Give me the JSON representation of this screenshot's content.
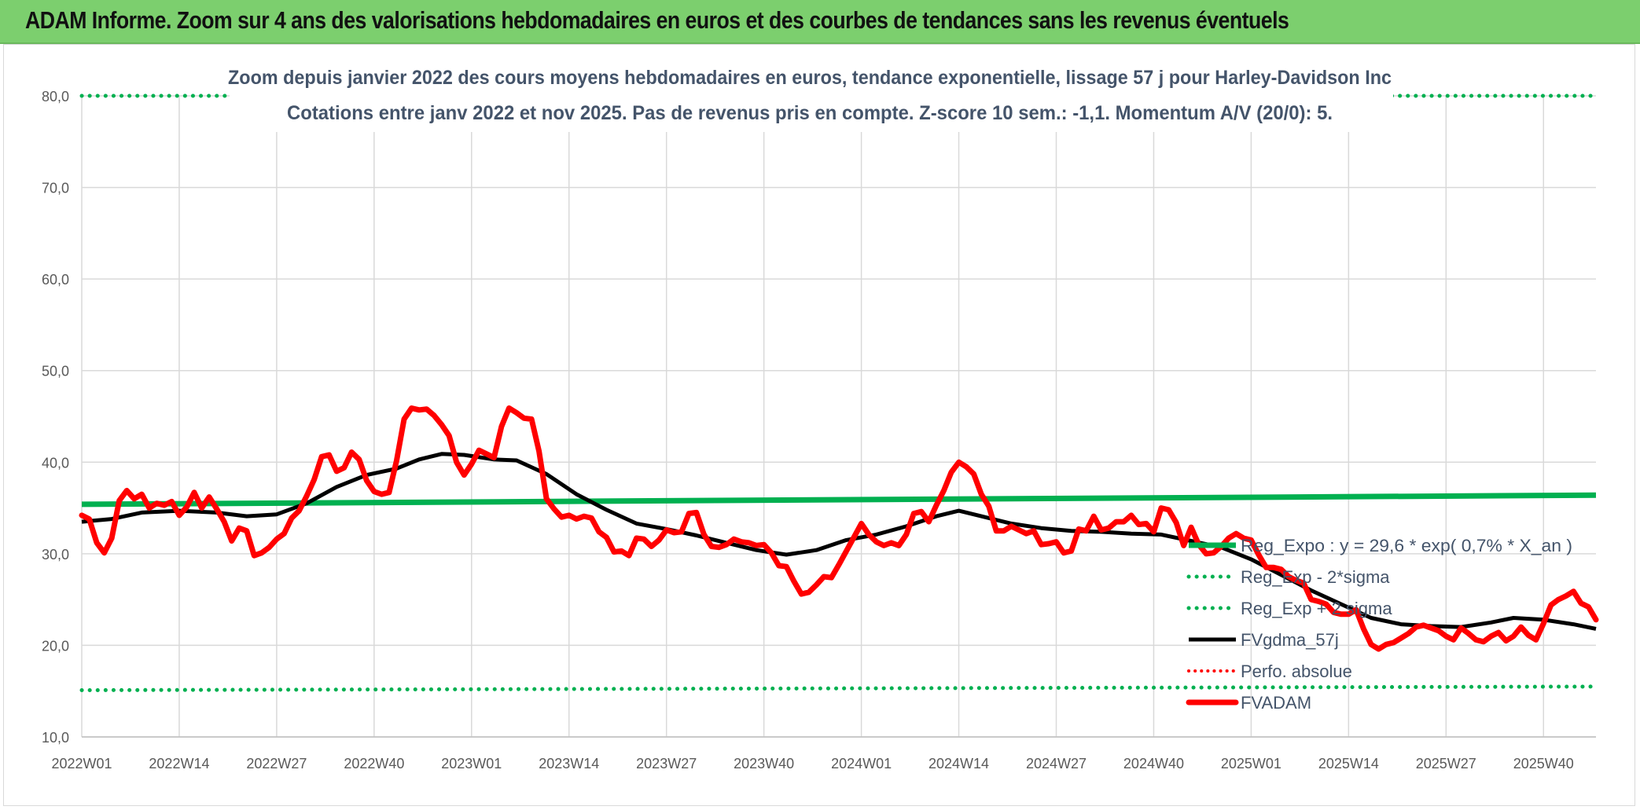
{
  "header": {
    "title": "ADAM Informe. Zoom sur 4 ans des valorisations hebdomadaires en euros et des courbes de tendances sans les revenus éventuels"
  },
  "colors": {
    "green": "#00b050",
    "red": "#ff0000",
    "black": "#000000",
    "grid": "#d9d9d9",
    "axis_text": "#595959",
    "header_bg": "#7ccf6e"
  },
  "chart_data": {
    "type": "line",
    "title": "Zoom depuis janvier 2022 des cours moyens hebdomadaires en euros, tendance exponentielle, lissage 57 j pour Harley-Davidson Inc",
    "subtitle": "Cotations entre janv 2022 et nov 2025. Pas de revenus pris en compte. Z-score 10 sem.: -1,1. Momentum A/V (20/0): 5.",
    "ylim": [
      10,
      80
    ],
    "yticks": [
      "10,0",
      "20,0",
      "30,0",
      "40,0",
      "50,0",
      "60,0",
      "70,0",
      "80,0"
    ],
    "xlim": [
      0,
      202
    ],
    "xticks": [
      {
        "label": "2022W01",
        "i": 0
      },
      {
        "label": "2022W14",
        "i": 13
      },
      {
        "label": "2022W27",
        "i": 26
      },
      {
        "label": "2022W40",
        "i": 39
      },
      {
        "label": "2023W01",
        "i": 52
      },
      {
        "label": "2023W14",
        "i": 65
      },
      {
        "label": "2023W27",
        "i": 78
      },
      {
        "label": "2023W40",
        "i": 91
      },
      {
        "label": "2024W01",
        "i": 104
      },
      {
        "label": "2024W14",
        "i": 117
      },
      {
        "label": "2024W27",
        "i": 130
      },
      {
        "label": "2024W40",
        "i": 143
      },
      {
        "label": "2025W01",
        "i": 156
      },
      {
        "label": "2025W14",
        "i": 169
      },
      {
        "label": "2025W27",
        "i": 182
      },
      {
        "label": "2025W40",
        "i": 195
      }
    ],
    "series": [
      {
        "name": "Reg_Expo : y = 29,6 * exp( 0,7% *  X_an )",
        "style": "green-solid",
        "points": [
          [
            0,
            35.4
          ],
          [
            202,
            36.4
          ]
        ]
      },
      {
        "name": "Reg_Exp - 2*sigma",
        "style": "green-dotted",
        "points": [
          [
            0,
            15.1
          ],
          [
            202,
            15.5
          ]
        ]
      },
      {
        "name": "Reg_Exp + 2 sigma",
        "style": "green-dotted",
        "points": [
          [
            0,
            80.0
          ],
          [
            202,
            80.0
          ]
        ]
      },
      {
        "name": "FVgdma_57j",
        "style": "black-solid",
        "points": [
          [
            0,
            33.5
          ],
          [
            4,
            33.8
          ],
          [
            8,
            34.5
          ],
          [
            13,
            34.7
          ],
          [
            18,
            34.5
          ],
          [
            22,
            34.1
          ],
          [
            26,
            34.3
          ],
          [
            30,
            35.5
          ],
          [
            34,
            37.3
          ],
          [
            38,
            38.6
          ],
          [
            42,
            39.3
          ],
          [
            45,
            40.3
          ],
          [
            48,
            40.9
          ],
          [
            51,
            40.8
          ],
          [
            55,
            40.3
          ],
          [
            58,
            40.2
          ],
          [
            62,
            38.7
          ],
          [
            66,
            36.5
          ],
          [
            70,
            34.8
          ],
          [
            74,
            33.3
          ],
          [
            78,
            32.7
          ],
          [
            82,
            32.0
          ],
          [
            86,
            31.2
          ],
          [
            90,
            30.4
          ],
          [
            94,
            29.9
          ],
          [
            98,
            30.4
          ],
          [
            102,
            31.5
          ],
          [
            106,
            32.1
          ],
          [
            110,
            33.0
          ],
          [
            114,
            34.1
          ],
          [
            117,
            34.7
          ],
          [
            120,
            34.1
          ],
          [
            124,
            33.3
          ],
          [
            128,
            32.8
          ],
          [
            132,
            32.5
          ],
          [
            136,
            32.4
          ],
          [
            140,
            32.2
          ],
          [
            144,
            32.1
          ],
          [
            148,
            31.4
          ],
          [
            152,
            30.7
          ],
          [
            156,
            29.4
          ],
          [
            160,
            27.7
          ],
          [
            164,
            26.0
          ],
          [
            168,
            24.5
          ],
          [
            172,
            23.0
          ],
          [
            176,
            22.3
          ],
          [
            180,
            22.1
          ],
          [
            184,
            22.0
          ],
          [
            188,
            22.5
          ],
          [
            191,
            23.0
          ],
          [
            195,
            22.8
          ],
          [
            199,
            22.3
          ],
          [
            202,
            21.8
          ]
        ]
      },
      {
        "name": "Perfo. absolue",
        "style": "red-dotted",
        "points": []
      },
      {
        "name": "FVADAM",
        "style": "red-solid",
        "points": [
          [
            0,
            34.2
          ],
          [
            1,
            33.8
          ],
          [
            2,
            31.2
          ],
          [
            3,
            30.1
          ],
          [
            4,
            31.7
          ],
          [
            5,
            35.8
          ],
          [
            6,
            36.9
          ],
          [
            7,
            36.0
          ],
          [
            8,
            36.5
          ],
          [
            9,
            35.0
          ],
          [
            10,
            35.5
          ],
          [
            11,
            35.3
          ],
          [
            12,
            35.7
          ],
          [
            13,
            34.2
          ],
          [
            14,
            35.1
          ],
          [
            15,
            36.7
          ],
          [
            16,
            35.0
          ],
          [
            17,
            36.2
          ],
          [
            18,
            34.9
          ],
          [
            19,
            33.5
          ],
          [
            20,
            31.4
          ],
          [
            21,
            32.8
          ],
          [
            22,
            32.5
          ],
          [
            23,
            29.8
          ],
          [
            24,
            30.1
          ],
          [
            25,
            30.7
          ],
          [
            26,
            31.6
          ],
          [
            27,
            32.2
          ],
          [
            28,
            33.9
          ],
          [
            29,
            34.7
          ],
          [
            30,
            36.3
          ],
          [
            31,
            38.1
          ],
          [
            32,
            40.6
          ],
          [
            33,
            40.8
          ],
          [
            34,
            39.0
          ],
          [
            35,
            39.4
          ],
          [
            36,
            41.1
          ],
          [
            37,
            40.3
          ],
          [
            38,
            38.0
          ],
          [
            39,
            36.8
          ],
          [
            40,
            36.5
          ],
          [
            41,
            36.7
          ],
          [
            42,
            40.2
          ],
          [
            43,
            44.7
          ],
          [
            44,
            45.9
          ],
          [
            45,
            45.7
          ],
          [
            46,
            45.8
          ],
          [
            47,
            45.1
          ],
          [
            48,
            44.1
          ],
          [
            49,
            42.9
          ],
          [
            50,
            40.0
          ],
          [
            51,
            38.6
          ],
          [
            52,
            39.8
          ],
          [
            53,
            41.3
          ],
          [
            54,
            40.9
          ],
          [
            55,
            40.5
          ],
          [
            56,
            43.9
          ],
          [
            57,
            45.9
          ],
          [
            58,
            45.4
          ],
          [
            59,
            44.8
          ],
          [
            60,
            44.7
          ],
          [
            61,
            41.2
          ],
          [
            62,
            36.0
          ],
          [
            63,
            34.9
          ],
          [
            64,
            34.0
          ],
          [
            65,
            34.2
          ],
          [
            66,
            33.8
          ],
          [
            67,
            34.1
          ],
          [
            68,
            33.9
          ],
          [
            69,
            32.4
          ],
          [
            70,
            31.8
          ],
          [
            71,
            30.2
          ],
          [
            72,
            30.3
          ],
          [
            73,
            29.8
          ],
          [
            74,
            31.7
          ],
          [
            75,
            31.6
          ],
          [
            76,
            30.8
          ],
          [
            77,
            31.5
          ],
          [
            78,
            32.6
          ],
          [
            79,
            32.3
          ],
          [
            80,
            32.4
          ],
          [
            81,
            34.4
          ],
          [
            82,
            34.5
          ],
          [
            83,
            32.1
          ],
          [
            84,
            30.8
          ],
          [
            85,
            30.7
          ],
          [
            86,
            31.0
          ],
          [
            87,
            31.6
          ],
          [
            88,
            31.3
          ],
          [
            89,
            31.2
          ],
          [
            90,
            30.9
          ],
          [
            91,
            31.0
          ],
          [
            92,
            30.1
          ],
          [
            93,
            28.7
          ],
          [
            94,
            28.6
          ],
          [
            95,
            27.0
          ],
          [
            96,
            25.6
          ],
          [
            97,
            25.8
          ],
          [
            98,
            26.6
          ],
          [
            99,
            27.5
          ],
          [
            100,
            27.4
          ],
          [
            101,
            28.8
          ],
          [
            102,
            30.3
          ],
          [
            103,
            31.8
          ],
          [
            104,
            33.3
          ],
          [
            105,
            32.1
          ],
          [
            106,
            31.3
          ],
          [
            107,
            30.9
          ],
          [
            108,
            31.2
          ],
          [
            109,
            30.9
          ],
          [
            110,
            32.1
          ],
          [
            111,
            34.4
          ],
          [
            112,
            34.6
          ],
          [
            113,
            33.5
          ],
          [
            114,
            35.3
          ],
          [
            115,
            36.9
          ],
          [
            116,
            38.9
          ],
          [
            117,
            40.0
          ],
          [
            118,
            39.5
          ],
          [
            119,
            38.7
          ],
          [
            120,
            36.5
          ],
          [
            121,
            35.2
          ],
          [
            122,
            32.5
          ],
          [
            123,
            32.5
          ],
          [
            124,
            33.0
          ],
          [
            125,
            32.6
          ],
          [
            126,
            32.2
          ],
          [
            127,
            32.5
          ],
          [
            128,
            31.0
          ],
          [
            129,
            31.1
          ],
          [
            130,
            31.3
          ],
          [
            131,
            30.1
          ],
          [
            132,
            30.3
          ],
          [
            133,
            32.7
          ],
          [
            134,
            32.5
          ],
          [
            135,
            34.1
          ],
          [
            136,
            32.6
          ],
          [
            137,
            32.8
          ],
          [
            138,
            33.5
          ],
          [
            139,
            33.5
          ],
          [
            140,
            34.2
          ],
          [
            141,
            33.2
          ],
          [
            142,
            33.3
          ],
          [
            143,
            32.4
          ],
          [
            144,
            35.0
          ],
          [
            145,
            34.8
          ],
          [
            146,
            33.4
          ],
          [
            147,
            30.9
          ],
          [
            148,
            32.9
          ],
          [
            149,
            31.0
          ],
          [
            150,
            30.0
          ],
          [
            151,
            30.1
          ],
          [
            152,
            30.8
          ],
          [
            153,
            31.7
          ],
          [
            154,
            32.2
          ],
          [
            155,
            31.7
          ],
          [
            156,
            31.5
          ],
          [
            157,
            29.9
          ],
          [
            158,
            28.5
          ],
          [
            159,
            28.5
          ],
          [
            160,
            28.3
          ],
          [
            161,
            27.5
          ],
          [
            162,
            27.1
          ],
          [
            163,
            26.8
          ],
          [
            164,
            25.0
          ],
          [
            165,
            24.8
          ],
          [
            166,
            24.5
          ],
          [
            167,
            23.6
          ],
          [
            168,
            23.4
          ],
          [
            169,
            23.4
          ],
          [
            170,
            23.9
          ],
          [
            171,
            21.8
          ],
          [
            172,
            20.1
          ],
          [
            173,
            19.6
          ],
          [
            174,
            20.1
          ],
          [
            175,
            20.3
          ],
          [
            176,
            20.8
          ],
          [
            177,
            21.3
          ],
          [
            178,
            22.0
          ],
          [
            179,
            22.2
          ],
          [
            180,
            21.9
          ],
          [
            181,
            21.6
          ],
          [
            182,
            21.0
          ],
          [
            183,
            20.6
          ],
          [
            184,
            21.9
          ],
          [
            185,
            21.3
          ],
          [
            186,
            20.6
          ],
          [
            187,
            20.4
          ],
          [
            188,
            21.0
          ],
          [
            189,
            21.4
          ],
          [
            190,
            20.5
          ],
          [
            191,
            21.0
          ],
          [
            192,
            22.0
          ],
          [
            193,
            21.1
          ],
          [
            194,
            20.6
          ],
          [
            195,
            22.4
          ],
          [
            196,
            24.4
          ],
          [
            197,
            25.0
          ],
          [
            198,
            25.4
          ],
          [
            199,
            25.9
          ],
          [
            200,
            24.6
          ],
          [
            201,
            24.2
          ],
          [
            202,
            22.8
          ]
        ]
      }
    ],
    "legend": {
      "position": "right-bottom",
      "entries": [
        {
          "label": "Reg_Expo : y = 29,6 * exp( 0,7% *  X_an )",
          "style": "green-solid"
        },
        {
          "label": "Reg_Exp - 2*sigma",
          "style": "green-dotted"
        },
        {
          "label": "Reg_Exp + 2 sigma",
          "style": "green-dotted"
        },
        {
          "label": "FVgdma_57j",
          "style": "black-solid"
        },
        {
          "label": "Perfo. absolue",
          "style": "red-dotted"
        },
        {
          "label": "FVADAM",
          "style": "red-solid"
        }
      ]
    }
  }
}
